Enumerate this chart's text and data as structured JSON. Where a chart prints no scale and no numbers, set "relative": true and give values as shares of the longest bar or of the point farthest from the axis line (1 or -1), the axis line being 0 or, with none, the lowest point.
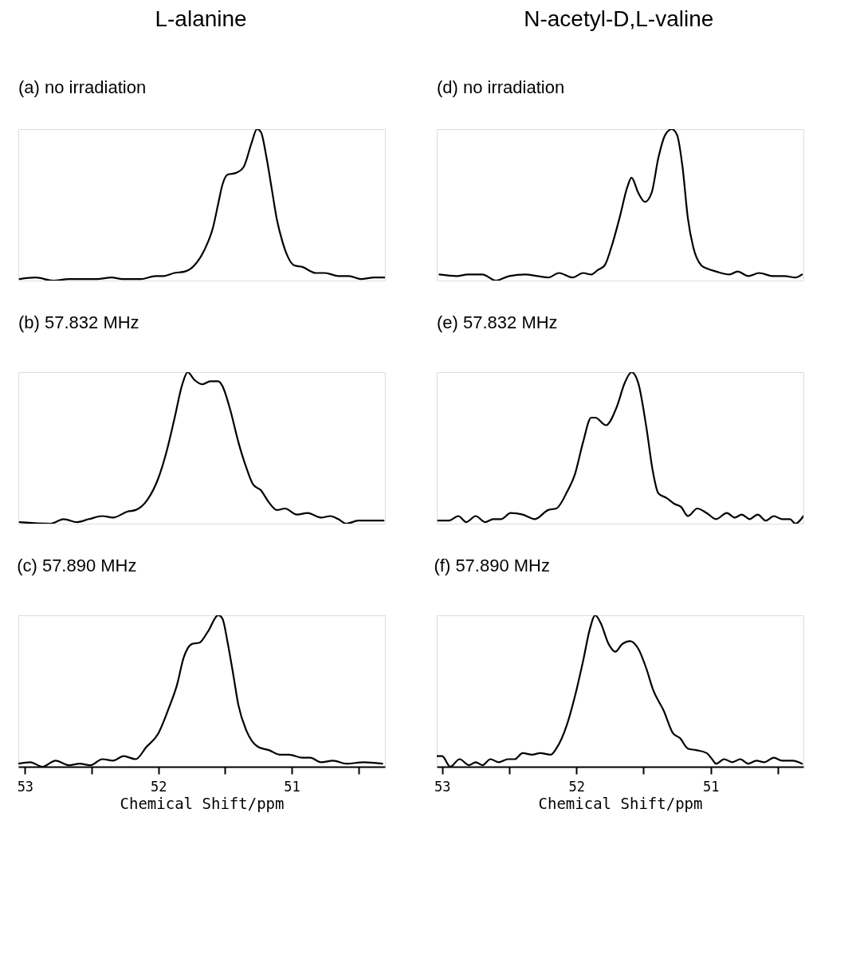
{
  "chart_data": [
    {
      "type": "line",
      "title": "L-alanine",
      "subtitle": "(a) no irradiation",
      "relative": true,
      "tick_labels": false,
      "xlim": [
        53.05,
        50.3
      ],
      "line_style": "solid",
      "x": [
        53.04,
        52.92,
        52.79,
        52.67,
        52.58,
        52.46,
        52.35,
        52.27,
        52.13,
        52.02,
        51.96,
        51.88,
        51.8,
        51.73,
        51.65,
        51.59,
        51.55,
        51.52,
        51.48,
        51.42,
        51.36,
        51.3,
        51.26,
        51.23,
        51.19,
        51.15,
        51.11,
        51.07,
        51.03,
        50.98,
        50.92,
        50.82,
        50.75,
        50.65,
        50.57,
        50.48,
        50.38,
        50.3
      ],
      "series": [
        {
          "color": "#000000",
          "values": [
            0.01,
            0.02,
            0,
            0.01,
            0.01,
            0.01,
            0.02,
            0.01,
            0.01,
            0.03,
            0.03,
            0.05,
            0.06,
            0.1,
            0.21,
            0.35,
            0.51,
            0.63,
            0.7,
            0.71,
            0.75,
            0.91,
            1,
            0.98,
            0.82,
            0.61,
            0.4,
            0.26,
            0.16,
            0.1,
            0.09,
            0.05,
            0.05,
            0.03,
            0.03,
            0.01,
            0.02,
            0.02
          ]
        }
      ]
    },
    {
      "type": "line",
      "title": "(b) 57.832 MHz",
      "relative": true,
      "tick_labels": false,
      "xlim": [
        53.05,
        50.3
      ],
      "line_style": "solid",
      "x": [
        53.04,
        52.81,
        52.71,
        52.61,
        52.52,
        52.42,
        52.34,
        52.23,
        52.17,
        52.08,
        52.0,
        51.94,
        51.88,
        51.82,
        51.78,
        51.73,
        51.67,
        51.61,
        51.55,
        51.52,
        51.46,
        51.4,
        51.34,
        51.29,
        51.23,
        51.17,
        51.11,
        51.05,
        50.96,
        50.88,
        50.78,
        50.71,
        50.65,
        50.59,
        50.5,
        50.4,
        50.31
      ],
      "series": [
        {
          "color": "#000000",
          "values": [
            0.01,
            0,
            0.03,
            0.01,
            0.03,
            0.05,
            0.04,
            0.08,
            0.09,
            0.16,
            0.3,
            0.47,
            0.69,
            0.92,
            1,
            0.95,
            0.92,
            0.94,
            0.94,
            0.91,
            0.75,
            0.54,
            0.37,
            0.26,
            0.22,
            0.14,
            0.09,
            0.1,
            0.06,
            0.07,
            0.04,
            0.05,
            0.03,
            0,
            0.02,
            0.02,
            0.02
          ]
        }
      ]
    },
    {
      "type": "line",
      "title": "(c) 57.890 MHz",
      "relative": true,
      "tick_labels": "x",
      "xlabel": "Chemical Shift/ppm",
      "xlim": [
        53.05,
        50.3
      ],
      "xticks": [
        53,
        {
          "value": 52.5,
          "label": null
        },
        52,
        {
          "value": 51.5,
          "label": null
        },
        51,
        {
          "value": 50.5,
          "label": null
        }
      ],
      "line_style": "solid",
      "x": [
        53.05,
        52.96,
        52.87,
        52.77,
        52.67,
        52.59,
        52.51,
        52.42,
        52.34,
        52.26,
        52.17,
        52.09,
        52.0,
        51.92,
        51.86,
        51.81,
        51.75,
        51.69,
        51.63,
        51.55,
        51.52,
        51.48,
        51.44,
        51.4,
        51.34,
        51.25,
        51.17,
        51.09,
        51.02,
        50.92,
        50.86,
        50.78,
        50.69,
        50.59,
        50.46,
        50.32
      ],
      "series": [
        {
          "color": "#000000",
          "values": [
            0.02,
            0.03,
            0,
            0.04,
            0.01,
            0.02,
            0.01,
            0.05,
            0.04,
            0.07,
            0.05,
            0.13,
            0.22,
            0.39,
            0.54,
            0.72,
            0.81,
            0.82,
            0.89,
            1,
            0.98,
            0.82,
            0.62,
            0.41,
            0.24,
            0.13,
            0.11,
            0.08,
            0.08,
            0.06,
            0.06,
            0.03,
            0.04,
            0.02,
            0.03,
            0.02
          ]
        }
      ]
    },
    {
      "type": "line",
      "title": "N-acetyl-D,L-valine",
      "subtitle": "(d) no irradiation",
      "relative": true,
      "tick_labels": false,
      "xlim": [
        53.04,
        50.31
      ],
      "line_style": "solid",
      "x": [
        53.02,
        52.89,
        52.81,
        52.7,
        52.6,
        52.5,
        52.38,
        52.29,
        52.21,
        52.13,
        52.03,
        51.95,
        51.89,
        51.84,
        51.79,
        51.74,
        51.68,
        51.62,
        51.59,
        51.54,
        51.49,
        51.44,
        51.39,
        51.34,
        51.29,
        51.25,
        51.21,
        51.17,
        51.13,
        51.07,
        51.03,
        50.96,
        50.86,
        50.8,
        50.72,
        50.64,
        50.54,
        50.45,
        50.37,
        50.32
      ],
      "series": [
        {
          "color": "#000000",
          "values": [
            0.04,
            0.03,
            0.04,
            0.04,
            0,
            0.03,
            0.04,
            0.03,
            0.02,
            0.05,
            0.02,
            0.05,
            0.04,
            0.07,
            0.1,
            0.22,
            0.41,
            0.62,
            0.68,
            0.58,
            0.52,
            0.58,
            0.81,
            0.96,
            1,
            0.96,
            0.75,
            0.41,
            0.22,
            0.1,
            0.08,
            0.06,
            0.04,
            0.06,
            0.03,
            0.05,
            0.03,
            0.03,
            0.02,
            0.04
          ]
        }
      ]
    },
    {
      "type": "line",
      "title": "(e) 57.832 MHz",
      "relative": true,
      "tick_labels": false,
      "xlim": [
        53.04,
        50.31
      ],
      "line_style": "solid",
      "x": [
        53.03,
        52.95,
        52.88,
        52.82,
        52.75,
        52.68,
        52.62,
        52.56,
        52.49,
        52.4,
        52.31,
        52.21,
        52.15,
        52.07,
        52.01,
        51.95,
        51.89,
        51.86,
        51.78,
        51.7,
        51.64,
        51.59,
        51.54,
        51.48,
        51.43,
        51.39,
        51.33,
        51.27,
        51.22,
        51.17,
        51.1,
        51.03,
        50.96,
        50.88,
        50.82,
        50.77,
        50.71,
        50.65,
        50.59,
        50.53,
        50.47,
        50.41,
        50.37,
        50.31
      ],
      "series": [
        {
          "color": "#000000",
          "values": [
            0.02,
            0.02,
            0.05,
            0.01,
            0.05,
            0.01,
            0.03,
            0.03,
            0.07,
            0.06,
            0.03,
            0.09,
            0.1,
            0.21,
            0.33,
            0.54,
            0.7,
            0.7,
            0.65,
            0.77,
            0.93,
            1,
            0.93,
            0.64,
            0.34,
            0.2,
            0.17,
            0.13,
            0.11,
            0.05,
            0.1,
            0.07,
            0.03,
            0.07,
            0.04,
            0.06,
            0.03,
            0.06,
            0.02,
            0.05,
            0.03,
            0.03,
            0,
            0.05
          ]
        }
      ]
    },
    {
      "type": "line",
      "title": "(f) 57.890 MHz",
      "relative": true,
      "tick_labels": "x",
      "xlabel": "Chemical Shift/ppm",
      "xlim": [
        53.04,
        50.31
      ],
      "xticks": [
        53,
        {
          "value": 52.5,
          "label": null
        },
        52,
        {
          "value": 51.5,
          "label": null
        },
        51,
        {
          "value": 50.5,
          "label": null
        }
      ],
      "line_style": "solid",
      "x": [
        53.04,
        53.0,
        52.94,
        52.87,
        52.8,
        52.75,
        52.7,
        52.64,
        52.58,
        52.51,
        52.46,
        52.4,
        52.33,
        52.27,
        52.19,
        52.15,
        52.07,
        52.01,
        51.95,
        51.9,
        51.86,
        51.82,
        51.76,
        51.71,
        51.66,
        51.6,
        51.54,
        51.48,
        51.43,
        51.35,
        51.28,
        51.23,
        51.17,
        51.11,
        51.03,
        50.99,
        50.96,
        50.9,
        50.84,
        50.78,
        50.72,
        50.66,
        50.6,
        50.53,
        50.47,
        50.39,
        50.32
      ],
      "series": [
        {
          "color": "#000000",
          "values": [
            0.07,
            0.07,
            0,
            0.05,
            0.01,
            0.03,
            0.01,
            0.05,
            0.03,
            0.05,
            0.05,
            0.09,
            0.08,
            0.09,
            0.08,
            0.12,
            0.28,
            0.47,
            0.7,
            0.91,
            1,
            0.95,
            0.81,
            0.76,
            0.81,
            0.83,
            0.78,
            0.65,
            0.51,
            0.37,
            0.22,
            0.19,
            0.12,
            0.11,
            0.09,
            0.05,
            0.02,
            0.05,
            0.03,
            0.05,
            0.02,
            0.04,
            0.03,
            0.06,
            0.04,
            0.04,
            0.02
          ]
        }
      ]
    }
  ]
}
